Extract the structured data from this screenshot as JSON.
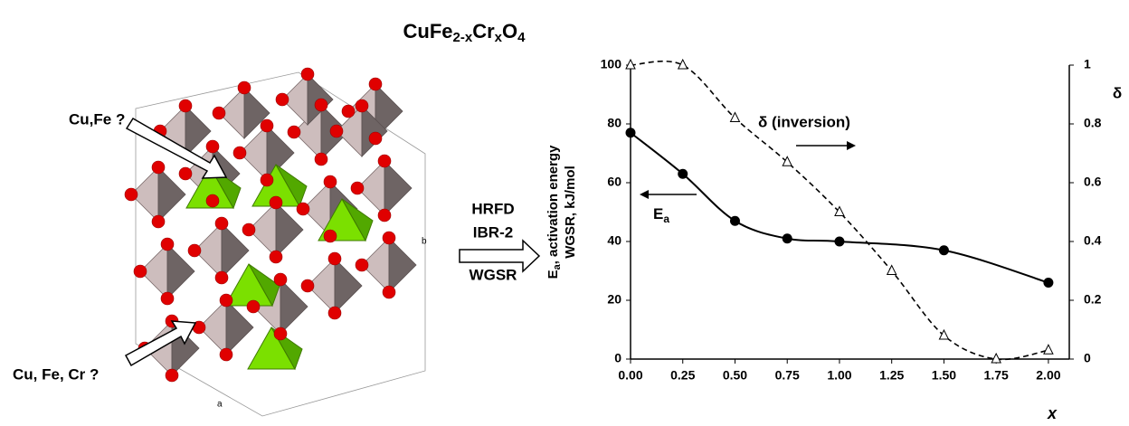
{
  "title": {
    "base1": "CuFe",
    "sub1": "2-x",
    "base2": "Cr",
    "sub2": "x",
    "base3": "O",
    "sub3": "4"
  },
  "illustration": {
    "label_top": "Cu,Fe ?",
    "label_bottom": "Cu, Fe, Cr ?",
    "axis_a": "a",
    "axis_b": "b"
  },
  "process": [
    "HRFD",
    "IBR-2",
    "WGSR"
  ],
  "chart_data": {
    "type": "line",
    "ylabel": {
      "main": "E",
      "sub": "a",
      "rest": ", activation energy",
      "line2": "WGSR, kJ/mol"
    },
    "y2label": "δ",
    "xlabel": "x",
    "xlim": [
      0,
      2.1
    ],
    "xticks": [
      {
        "value": 0,
        "label": "0.00"
      },
      {
        "value": 0.25,
        "label": "0.25"
      },
      {
        "value": 0.5,
        "label": "0.50"
      },
      {
        "value": 0.75,
        "label": "0.75"
      },
      {
        "value": 1,
        "label": "1.00"
      },
      {
        "value": 1.25,
        "label": "1.25"
      },
      {
        "value": 1.5,
        "label": "1.50"
      },
      {
        "value": 1.75,
        "label": "1.75"
      },
      {
        "value": 2,
        "label": "2.00"
      }
    ],
    "ylim": [
      0,
      100
    ],
    "yticks": [
      0,
      20,
      40,
      60,
      80,
      100
    ],
    "y2lim": [
      0,
      1
    ],
    "y2ticks": [
      0,
      0.2,
      0.4,
      0.6,
      0.8,
      1
    ],
    "series": [
      {
        "name": "E",
        "name_sub": "a",
        "color": "#000000",
        "marker": "circle",
        "dashed": false,
        "x": [
          0,
          0.25,
          0.5,
          0.75,
          1,
          1.5,
          2
        ],
        "values": [
          77,
          63,
          47,
          41,
          40,
          37,
          26
        ]
      },
      {
        "name": "δ (inversion)",
        "color": "#000000",
        "marker": "triangle",
        "dashed": true,
        "axis": "y2",
        "x": [
          0,
          0.25,
          0.5,
          0.75,
          1,
          1.25,
          1.5,
          1.75,
          2
        ],
        "values": [
          1.0,
          1.0,
          0.82,
          0.67,
          0.5,
          0.3,
          0.08,
          0,
          0.03
        ]
      }
    ]
  }
}
